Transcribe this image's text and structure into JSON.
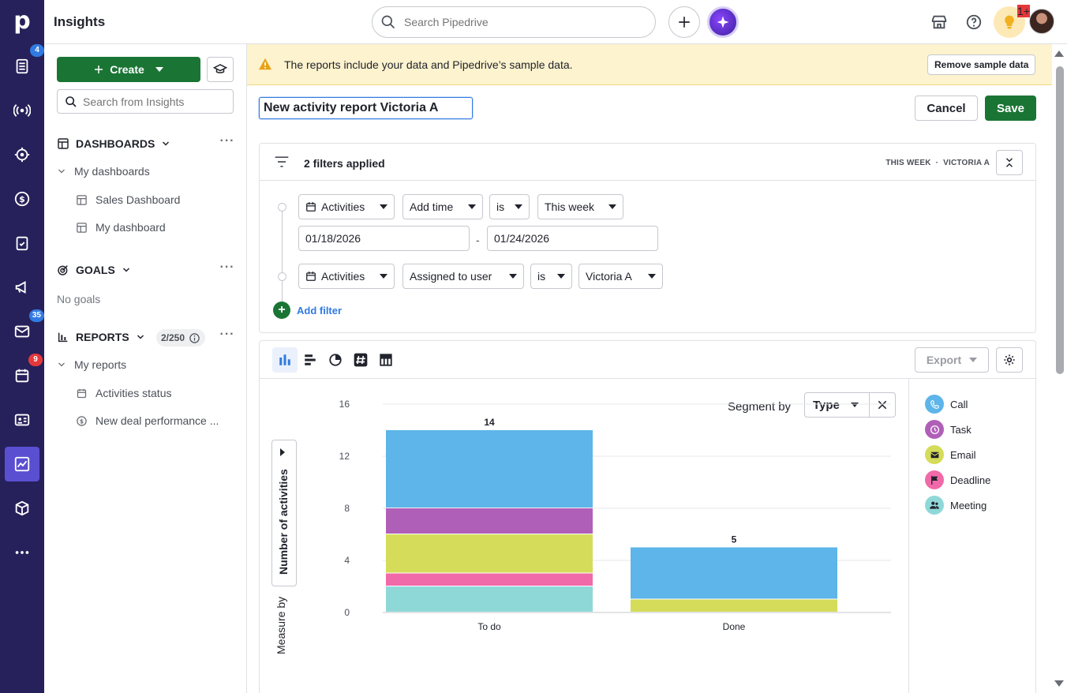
{
  "app": {
    "title": "Insights",
    "logo": "p"
  },
  "rail": {
    "badges": {
      "leads": "4",
      "mail": "35",
      "calendar": "9"
    }
  },
  "topbar": {
    "search_placeholder": "Search Pipedrive",
    "notifications_badge": "1+"
  },
  "sidebar": {
    "create_label": "Create",
    "search_placeholder": "Search from Insights",
    "dashboards": {
      "title": "DASHBOARDS",
      "group": "My dashboards",
      "items": [
        "Sales Dashboard",
        "My dashboard"
      ]
    },
    "goals": {
      "title": "GOALS",
      "empty": "No goals"
    },
    "reports": {
      "title": "REPORTS",
      "count": "2/250",
      "group": "My reports",
      "items": [
        "Activities status",
        "New deal performance ..."
      ]
    }
  },
  "banner": {
    "text": "The reports include your data and Pipedrive’s sample data.",
    "button": "Remove sample data"
  },
  "report": {
    "name": "New activity report Victoria A",
    "cancel_label": "Cancel",
    "save_label": "Save"
  },
  "filters": {
    "count_label": "2 filters applied",
    "summary_period": "THIS WEEK",
    "summary_separator": "·",
    "summary_user": "VICTORIA A",
    "rows": [
      {
        "entity": "Activities",
        "field": "Add time",
        "operator": "is",
        "value": "This week"
      },
      {
        "entity": "Activities",
        "field": "Assigned to user",
        "operator": "is",
        "value": "Victoria A"
      }
    ],
    "date_from": "01/18/2026",
    "date_separator": "-",
    "date_to": "01/24/2026",
    "add_label": "Add filter"
  },
  "chart_toolbar": {
    "export_label": "Export"
  },
  "segment": {
    "label": "Segment by",
    "value": "Type"
  },
  "measure": {
    "label": "Measure by",
    "value": "Number of activities"
  },
  "legend": [
    {
      "name": "Call",
      "color": "#5db5e9",
      "icon": "phone-icon"
    },
    {
      "name": "Task",
      "color": "#b05fb8",
      "icon": "clock-icon"
    },
    {
      "name": "Email",
      "color": "#d5dc5a",
      "icon": "envelope-icon"
    },
    {
      "name": "Deadline",
      "color": "#f06aa9",
      "icon": "flag-icon"
    },
    {
      "name": "Meeting",
      "color": "#8fd8d8",
      "icon": "people-icon"
    }
  ],
  "chart_data": {
    "type": "bar",
    "stacked": true,
    "categories": [
      "To do",
      "Done"
    ],
    "ylim": [
      0,
      16
    ],
    "yticks": [
      0,
      4,
      8,
      12,
      16
    ],
    "totals": [
      14,
      5
    ],
    "series": [
      {
        "name": "Meeting",
        "color": "#8fd8d8",
        "values": [
          2,
          0
        ]
      },
      {
        "name": "Deadline",
        "color": "#f06aa9",
        "values": [
          1,
          0
        ]
      },
      {
        "name": "Email",
        "color": "#d5dc5a",
        "values": [
          3,
          1
        ]
      },
      {
        "name": "Task",
        "color": "#b05fb8",
        "values": [
          2,
          0
        ]
      },
      {
        "name": "Call",
        "color": "#5db5e9",
        "values": [
          6,
          4
        ]
      }
    ],
    "grid": true,
    "xlabel": "",
    "ylabel": "Number of activities"
  }
}
